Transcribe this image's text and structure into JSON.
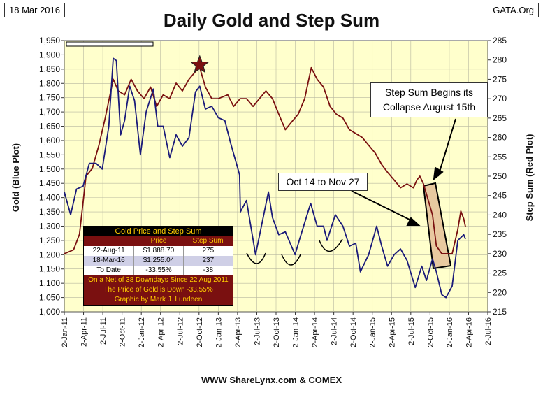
{
  "header": {
    "date": "18 Mar 2016",
    "source": "GATA.Org",
    "title": "Daily Gold and Step Sum",
    "footer": "WWW ShareLynx.com & COMEX"
  },
  "colors": {
    "plot_bg": "#ffffcc",
    "gold_line": "#1a1a7a",
    "step_line": "#7a1010",
    "star": "#7a1010",
    "highlight_fill": "#e8c9a0",
    "table_header_bg": "#000000",
    "table_header_text": "#ffcc00",
    "table_note_bg": "#7a1010"
  },
  "chart_data": {
    "type": "line",
    "title": "Daily Gold and Step Sum",
    "ylabel": "Gold   (Blue Plot)",
    "y2label": "Step Sum   (Red Plot)",
    "ylim": [
      1000,
      1950
    ],
    "y2lim": [
      215,
      285
    ],
    "yticks": [
      "1,000",
      "1,050",
      "1,100",
      "1,150",
      "1,200",
      "1,250",
      "1,300",
      "1,350",
      "1,400",
      "1,450",
      "1,500",
      "1,550",
      "1,600",
      "1,650",
      "1,700",
      "1,750",
      "1,800",
      "1,850",
      "1,900",
      "1,950"
    ],
    "y2ticks": [
      "215",
      "220",
      "225",
      "230",
      "235",
      "240",
      "245",
      "250",
      "255",
      "260",
      "265",
      "270",
      "275",
      "280",
      "285"
    ],
    "xticks": [
      "2-Jan-11",
      "2-Apr-11",
      "2-Jul-11",
      "2-Oct-11",
      "2-Jan-12",
      "2-Apr-12",
      "2-Jul-12",
      "2-Oct-12",
      "2-Jan-13",
      "2-Apr-13",
      "2-Jul-13",
      "2-Oct-13",
      "2-Jan-14",
      "2-Apr-14",
      "2-Jul-14",
      "2-Oct-14",
      "2-Jan-15",
      "2-Apr-15",
      "2-Jul-15",
      "2-Oct-15",
      "2-Jan-16",
      "2-Apr-16",
      "2-Jul-16"
    ],
    "xlim": [
      "2011-01-02",
      "2016-07-02"
    ],
    "grid": true,
    "series": [
      {
        "name": "Gold",
        "axis": "left",
        "points": [
          [
            "2011-01-02",
            1420
          ],
          [
            "2011-02-01",
            1340
          ],
          [
            "2011-03-01",
            1430
          ],
          [
            "2011-04-01",
            1440
          ],
          [
            "2011-05-01",
            1520
          ],
          [
            "2011-06-01",
            1520
          ],
          [
            "2011-07-01",
            1500
          ],
          [
            "2011-08-01",
            1650
          ],
          [
            "2011-08-22",
            1888
          ],
          [
            "2011-09-06",
            1880
          ],
          [
            "2011-09-26",
            1620
          ],
          [
            "2011-10-15",
            1670
          ],
          [
            "2011-11-08",
            1790
          ],
          [
            "2011-12-01",
            1740
          ],
          [
            "2011-12-29",
            1550
          ],
          [
            "2012-01-25",
            1700
          ],
          [
            "2012-02-28",
            1780
          ],
          [
            "2012-03-20",
            1650
          ],
          [
            "2012-04-15",
            1650
          ],
          [
            "2012-05-16",
            1540
          ],
          [
            "2012-06-15",
            1620
          ],
          [
            "2012-07-15",
            1580
          ],
          [
            "2012-08-15",
            1610
          ],
          [
            "2012-09-15",
            1770
          ],
          [
            "2012-10-05",
            1790
          ],
          [
            "2012-11-01",
            1710
          ],
          [
            "2012-12-01",
            1720
          ],
          [
            "2013-01-01",
            1680
          ],
          [
            "2013-02-01",
            1670
          ],
          [
            "2013-03-01",
            1590
          ],
          [
            "2013-04-12",
            1480
          ],
          [
            "2013-04-16",
            1350
          ],
          [
            "2013-05-15",
            1390
          ],
          [
            "2013-06-27",
            1200
          ],
          [
            "2013-08-27",
            1420
          ],
          [
            "2013-09-15",
            1330
          ],
          [
            "2013-10-15",
            1270
          ],
          [
            "2013-11-15",
            1280
          ],
          [
            "2013-12-31",
            1200
          ],
          [
            "2014-01-20",
            1250
          ],
          [
            "2014-03-15",
            1380
          ],
          [
            "2014-04-15",
            1300
          ],
          [
            "2014-05-15",
            1300
          ],
          [
            "2014-06-01",
            1250
          ],
          [
            "2014-07-10",
            1340
          ],
          [
            "2014-08-15",
            1300
          ],
          [
            "2014-09-15",
            1230
          ],
          [
            "2014-10-15",
            1240
          ],
          [
            "2014-11-06",
            1140
          ],
          [
            "2014-12-15",
            1200
          ],
          [
            "2015-01-22",
            1300
          ],
          [
            "2015-02-15",
            1230
          ],
          [
            "2015-03-15",
            1160
          ],
          [
            "2015-04-15",
            1200
          ],
          [
            "2015-05-15",
            1220
          ],
          [
            "2015-06-15",
            1180
          ],
          [
            "2015-07-24",
            1085
          ],
          [
            "2015-08-24",
            1160
          ],
          [
            "2015-09-15",
            1110
          ],
          [
            "2015-10-14",
            1185
          ],
          [
            "2015-11-01",
            1140
          ],
          [
            "2015-11-27",
            1060
          ],
          [
            "2015-12-17",
            1050
          ],
          [
            "2016-01-15",
            1090
          ],
          [
            "2016-02-11",
            1250
          ],
          [
            "2016-03-10",
            1270
          ],
          [
            "2016-03-18",
            1255
          ]
        ]
      },
      {
        "name": "Step Sum",
        "axis": "right",
        "points": [
          [
            "2011-01-02",
            230
          ],
          [
            "2011-02-15",
            231
          ],
          [
            "2011-03-15",
            235
          ],
          [
            "2011-04-15",
            250
          ],
          [
            "2011-05-15",
            252
          ],
          [
            "2011-06-15",
            258
          ],
          [
            "2011-07-15",
            265
          ],
          [
            "2011-08-22",
            275
          ],
          [
            "2011-09-15",
            272
          ],
          [
            "2011-10-15",
            271
          ],
          [
            "2011-11-15",
            275
          ],
          [
            "2011-12-15",
            272
          ],
          [
            "2012-01-15",
            270
          ],
          [
            "2012-02-15",
            273
          ],
          [
            "2012-03-15",
            268
          ],
          [
            "2012-04-15",
            271
          ],
          [
            "2012-05-15",
            270
          ],
          [
            "2012-06-15",
            274
          ],
          [
            "2012-07-15",
            272
          ],
          [
            "2012-08-15",
            275
          ],
          [
            "2012-09-15",
            277
          ],
          [
            "2012-10-05",
            278
          ],
          [
            "2012-11-01",
            273
          ],
          [
            "2012-12-01",
            270
          ],
          [
            "2013-01-01",
            270
          ],
          [
            "2013-02-15",
            271
          ],
          [
            "2013-03-15",
            268
          ],
          [
            "2013-04-15",
            270
          ],
          [
            "2013-05-15",
            270
          ],
          [
            "2013-06-15",
            268
          ],
          [
            "2013-07-15",
            270
          ],
          [
            "2013-08-15",
            272
          ],
          [
            "2013-09-15",
            270
          ],
          [
            "2013-10-15",
            266
          ],
          [
            "2013-11-15",
            262
          ],
          [
            "2013-12-15",
            264
          ],
          [
            "2014-01-15",
            266
          ],
          [
            "2014-02-15",
            270
          ],
          [
            "2014-03-18",
            278
          ],
          [
            "2014-04-15",
            275
          ],
          [
            "2014-05-15",
            273
          ],
          [
            "2014-06-15",
            268
          ],
          [
            "2014-07-15",
            266
          ],
          [
            "2014-08-15",
            265
          ],
          [
            "2014-09-15",
            262
          ],
          [
            "2014-10-15",
            261
          ],
          [
            "2014-11-15",
            260
          ],
          [
            "2014-12-15",
            258
          ],
          [
            "2015-01-15",
            256
          ],
          [
            "2015-02-15",
            253
          ],
          [
            "2015-03-15",
            251
          ],
          [
            "2015-04-15",
            249
          ],
          [
            "2015-05-15",
            247
          ],
          [
            "2015-06-15",
            248
          ],
          [
            "2015-07-15",
            247
          ],
          [
            "2015-08-01",
            249
          ],
          [
            "2015-08-15",
            250
          ],
          [
            "2015-09-01",
            248
          ],
          [
            "2015-10-14",
            240
          ],
          [
            "2015-11-01",
            232
          ],
          [
            "2015-11-27",
            230
          ],
          [
            "2015-12-15",
            230
          ],
          [
            "2016-01-15",
            230
          ],
          [
            "2016-02-10",
            236
          ],
          [
            "2016-02-25",
            241
          ],
          [
            "2016-03-10",
            239
          ],
          [
            "2016-03-18",
            237
          ]
        ]
      }
    ],
    "annotations": [
      {
        "text": "Step Sum Begins its Collapse August 15th"
      },
      {
        "text": "Oct 14 to Nov 27"
      }
    ]
  },
  "table": {
    "title": "Gold Price and Step Sum",
    "col_price": "Price",
    "col_step": "Step Sum",
    "rows": [
      {
        "label": "22-Aug-11",
        "price": "$1,888.70",
        "step": "275"
      },
      {
        "label": "18-Mar-16",
        "price": "$1,255.04",
        "step": "237"
      },
      {
        "label": "To Date",
        "price": "-33.55%",
        "step": "-38"
      }
    ],
    "notes": [
      "On a Net of 38 Downdays Since 22 Aug 2011",
      "The Price of Gold is Down -33.55%",
      "Graphic by Mark J. Lundeen"
    ]
  }
}
